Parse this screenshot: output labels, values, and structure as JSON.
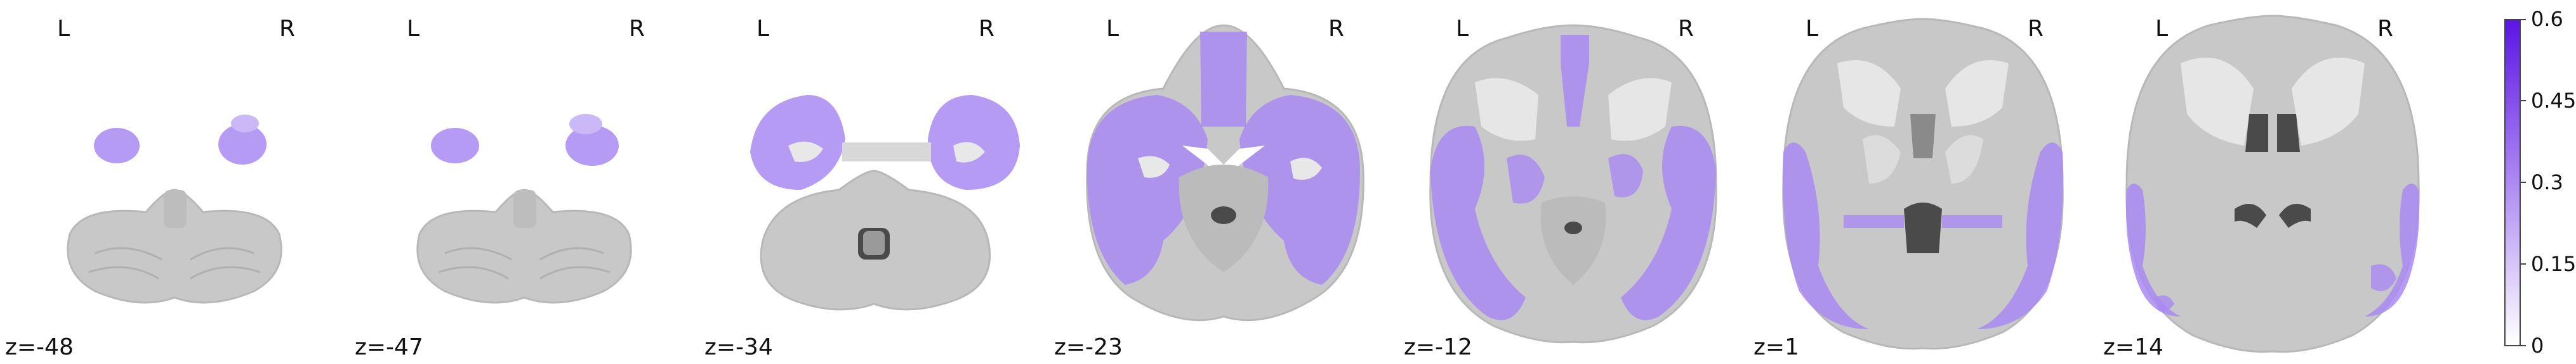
{
  "orientation": {
    "left": "L",
    "right": "R"
  },
  "slices": [
    {
      "label": "z=-48",
      "z": -48
    },
    {
      "label": "z=-47",
      "z": -47
    },
    {
      "label": "z=-34",
      "z": -34
    },
    {
      "label": "z=-23",
      "z": -23
    },
    {
      "label": "z=-12",
      "z": -12
    },
    {
      "label": "z=1",
      "z": 1
    },
    {
      "label": "z=14",
      "z": 14
    }
  ],
  "colorbar": {
    "ticks": [
      "0.6",
      "0.45",
      "0.3",
      "0.15",
      "0"
    ],
    "min": 0,
    "max": 0.6,
    "color_low": "#ffffff",
    "color_high": "#5b15e6"
  },
  "colors": {
    "overlay": "#a98af2",
    "brain_gray": "#c9c9c9",
    "white_matter": "#ececec",
    "ventricle": "#4a4a4a"
  }
}
